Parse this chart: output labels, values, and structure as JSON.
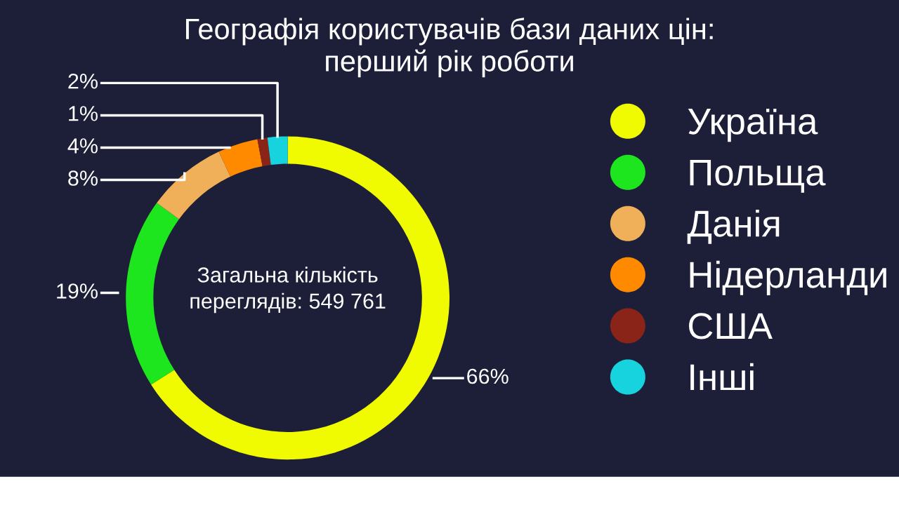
{
  "chart_data": {
    "type": "donut",
    "title": "Географія користувачів бази даних цін:\nперший рік роботи",
    "categories": [
      "Україна",
      "Польща",
      "Данія",
      "Нідерланди",
      "США",
      "Інші"
    ],
    "values": [
      66,
      19,
      8,
      4,
      1,
      2
    ],
    "colors": [
      "#f0fa00",
      "#1ee61e",
      "#f0b05a",
      "#ff8a00",
      "#8a2418",
      "#16d3de"
    ],
    "value_labels": [
      "66%",
      "19%",
      "8%",
      "4%",
      "1%",
      "2%"
    ],
    "annotations": [
      "Загальна кількість\nпереглядів: 549 761"
    ],
    "legend": "right"
  }
}
